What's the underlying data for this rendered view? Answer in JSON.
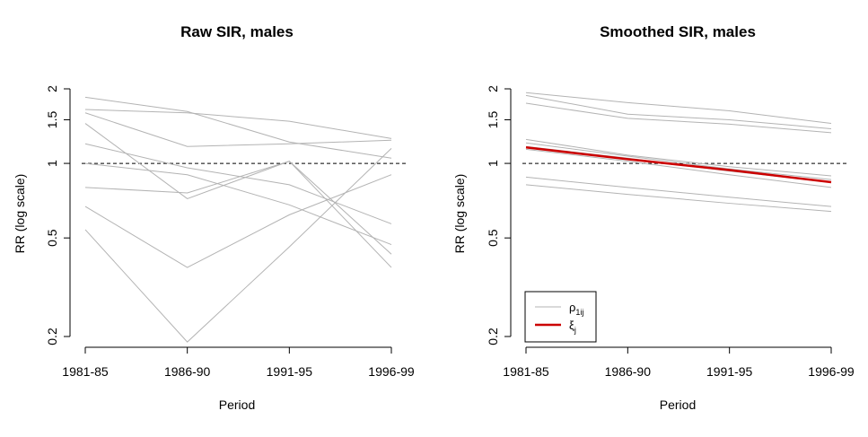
{
  "chart_data": [
    {
      "type": "line",
      "title": "Raw SIR, males",
      "xlabel": "Period",
      "ylabel": "RR (log scale)",
      "y_scale": "log",
      "ylim": [
        0.2,
        2
      ],
      "yticks": [
        0.2,
        0.5,
        1,
        1.5,
        2
      ],
      "ytick_labels": [
        "0.2",
        "0.5",
        "1",
        "1.5",
        "2"
      ],
      "categories": [
        "1981-85",
        "1986-90",
        "1991-95",
        "1996-99"
      ],
      "reference_line": 1,
      "series_color": "#b3b3b3",
      "series": [
        {
          "values": [
            1.85,
            1.62,
            1.22,
            1.05
          ]
        },
        {
          "values": [
            1.65,
            1.6,
            1.48,
            1.26
          ]
        },
        {
          "values": [
            1.6,
            1.17,
            1.2,
            1.24
          ]
        },
        {
          "values": [
            1.45,
            0.72,
            1.02,
            0.43
          ]
        },
        {
          "values": [
            1.2,
            0.96,
            0.82,
            0.57
          ]
        },
        {
          "values": [
            1.0,
            0.9,
            0.68,
            0.47
          ]
        },
        {
          "values": [
            0.8,
            0.76,
            1.02,
            0.38
          ]
        },
        {
          "values": [
            0.67,
            0.38,
            0.62,
            0.9
          ]
        },
        {
          "values": [
            0.54,
            0.19,
            0.46,
            1.15
          ]
        }
      ]
    },
    {
      "type": "line",
      "title": "Smoothed SIR, males",
      "xlabel": "Period",
      "ylabel": "RR (log scale)",
      "y_scale": "log",
      "ylim": [
        0.2,
        2
      ],
      "yticks": [
        0.2,
        0.5,
        1,
        1.5,
        2
      ],
      "ytick_labels": [
        "0.2",
        "0.5",
        "1",
        "1.5",
        "2"
      ],
      "categories": [
        "1981-85",
        "1986-90",
        "1991-95",
        "1996-99"
      ],
      "reference_line": 1,
      "series_color": "#b3b3b3",
      "highlight_color": "#cc0000",
      "series": [
        {
          "values": [
            1.93,
            1.76,
            1.63,
            1.45
          ]
        },
        {
          "values": [
            1.88,
            1.58,
            1.5,
            1.38
          ]
        },
        {
          "values": [
            1.75,
            1.52,
            1.44,
            1.33
          ]
        },
        {
          "values": [
            1.25,
            1.08,
            0.97,
            0.89
          ]
        },
        {
          "values": [
            1.21,
            1.07,
            0.95,
            0.86
          ]
        },
        {
          "values": [
            1.17,
            1.05,
            0.93,
            0.84
          ]
        },
        {
          "values": [
            1.14,
            1.02,
            0.9,
            0.8
          ]
        },
        {
          "values": [
            0.88,
            0.8,
            0.73,
            0.67
          ]
        },
        {
          "values": [
            0.82,
            0.75,
            0.69,
            0.64
          ]
        },
        {
          "name": "ξj",
          "highlight": true,
          "values": [
            1.16,
            1.04,
            0.94,
            0.84
          ]
        }
      ],
      "legend": {
        "placement": "bottom-left",
        "entries": [
          {
            "symbol": "ρ",
            "sub": "1ij",
            "color": "#b3b3b3"
          },
          {
            "symbol": "ξ",
            "sub": "j",
            "color": "#cc0000"
          }
        ]
      }
    }
  ]
}
